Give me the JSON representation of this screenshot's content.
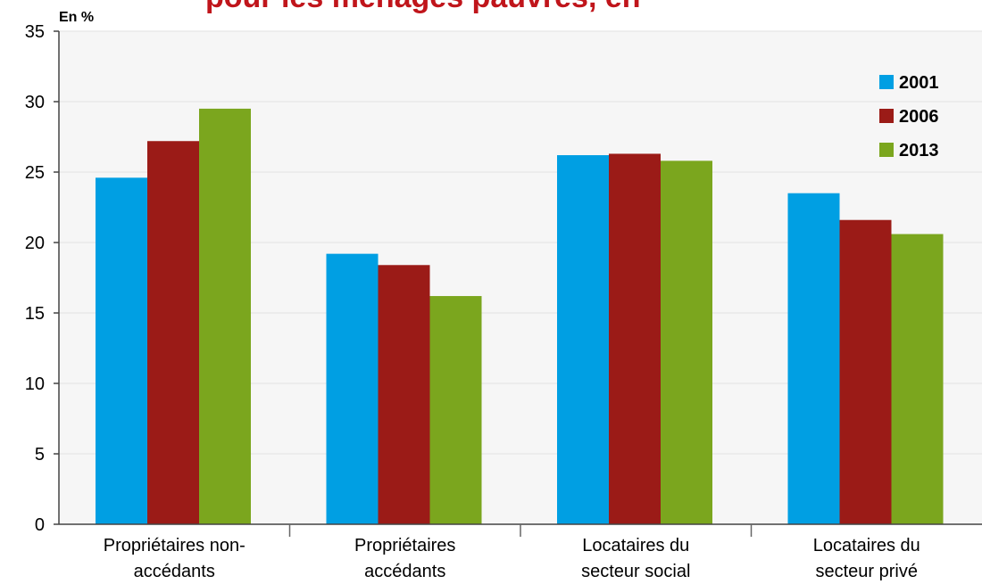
{
  "chart_data": {
    "type": "bar",
    "title": "pour les ménages pauvres, en",
    "unit_label": "En %",
    "categories": [
      [
        "Propriétaires non-",
        "accédants"
      ],
      [
        "Propriétaires",
        "accédants"
      ],
      [
        "Locataires du",
        "secteur social"
      ],
      [
        "Locataires du",
        "secteur privé"
      ]
    ],
    "series": [
      {
        "name": "2001",
        "color": "#009fe3",
        "values": [
          24.6,
          19.2,
          26.2,
          23.5
        ]
      },
      {
        "name": "2006",
        "color": "#9b1b17",
        "values": [
          27.2,
          18.4,
          26.3,
          21.6
        ]
      },
      {
        "name": "2013",
        "color": "#7ba61e",
        "values": [
          29.5,
          16.2,
          25.8,
          20.6
        ]
      }
    ],
    "ylim": [
      0,
      35
    ],
    "yticks": [
      0,
      5,
      10,
      15,
      20,
      25,
      30,
      35
    ],
    "grid": true,
    "legend_position": "top-right",
    "title_color": "#c0151b"
  }
}
